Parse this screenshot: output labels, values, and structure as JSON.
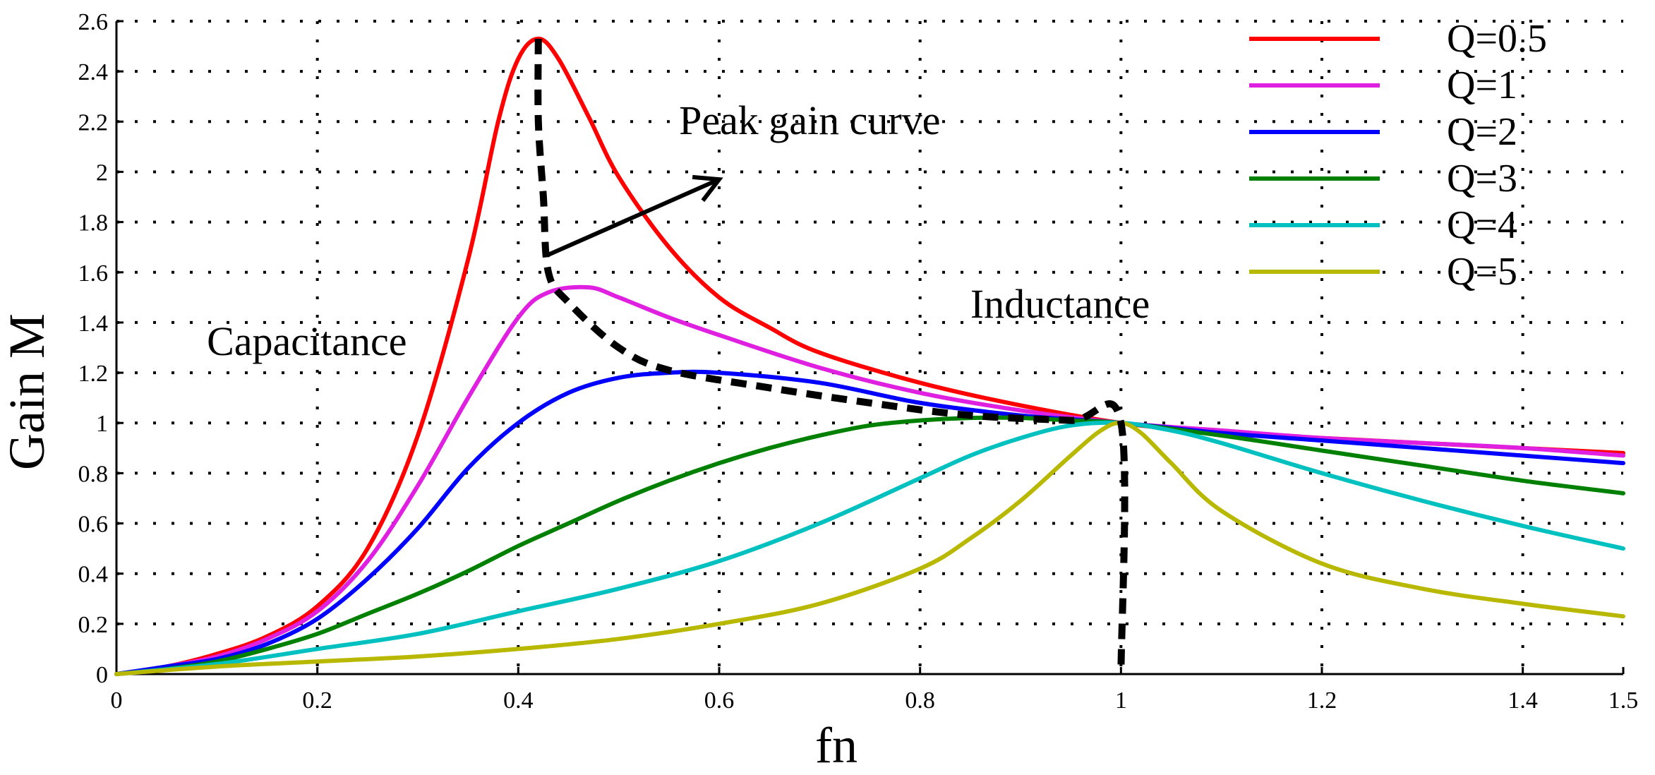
{
  "chart_data": {
    "type": "line",
    "title": "",
    "xlabel": "fn",
    "ylabel": "Gain M",
    "xlim": [
      0,
      1.5
    ],
    "ylim": [
      0,
      2.6
    ],
    "xticks": [
      0,
      0.2,
      0.4,
      0.6,
      0.8,
      1,
      1.2,
      1.4,
      1.5
    ],
    "xtick_labels": [
      "0",
      "0.2",
      "0.4",
      "0.6",
      "0.8",
      "1",
      "1.2",
      "1.4",
      "1.5"
    ],
    "yticks": [
      0,
      0.2,
      0.4,
      0.6,
      0.8,
      1,
      1.2,
      1.4,
      1.6,
      1.8,
      2,
      2.2,
      2.4,
      2.6
    ],
    "ytick_labels": [
      "0",
      "0.2",
      "0.4",
      "0.6",
      "0.8",
      "1",
      "1.2",
      "1.4",
      "1.6",
      "1.8",
      "2",
      "2.2",
      "2.4",
      "2.6"
    ],
    "grid": true,
    "legend_position": "top-right",
    "series": [
      {
        "name": "Q=0.5",
        "color": "#ff0000",
        "x": [
          0,
          0.05,
          0.1,
          0.15,
          0.2,
          0.25,
          0.3,
          0.35,
          0.38,
          0.4,
          0.42,
          0.44,
          0.47,
          0.5,
          0.55,
          0.6,
          0.65,
          0.7,
          0.8,
          0.9,
          1.0,
          1.1,
          1.2,
          1.3,
          1.4,
          1.5
        ],
        "values": [
          0,
          0.03,
          0.08,
          0.15,
          0.27,
          0.5,
          0.95,
          1.65,
          2.2,
          2.45,
          2.53,
          2.45,
          2.22,
          1.98,
          1.7,
          1.5,
          1.38,
          1.28,
          1.16,
          1.07,
          1.0,
          0.96,
          0.94,
          0.92,
          0.9,
          0.88
        ]
      },
      {
        "name": "Q=1",
        "color": "#e020e0",
        "x": [
          0,
          0.05,
          0.1,
          0.15,
          0.2,
          0.25,
          0.3,
          0.35,
          0.4,
          0.43,
          0.47,
          0.5,
          0.55,
          0.6,
          0.7,
          0.8,
          0.9,
          1.0,
          1.1,
          1.2,
          1.3,
          1.4,
          1.5
        ],
        "values": [
          0,
          0.03,
          0.07,
          0.14,
          0.25,
          0.45,
          0.75,
          1.1,
          1.42,
          1.52,
          1.54,
          1.5,
          1.42,
          1.35,
          1.22,
          1.12,
          1.05,
          1.0,
          0.97,
          0.94,
          0.92,
          0.9,
          0.87
        ]
      },
      {
        "name": "Q=2",
        "color": "#0000ff",
        "x": [
          0,
          0.05,
          0.1,
          0.15,
          0.2,
          0.25,
          0.3,
          0.35,
          0.4,
          0.45,
          0.5,
          0.55,
          0.6,
          0.7,
          0.8,
          0.9,
          1.0,
          1.1,
          1.2,
          1.3,
          1.4,
          1.5
        ],
        "values": [
          0,
          0.03,
          0.06,
          0.12,
          0.22,
          0.38,
          0.58,
          0.82,
          1.0,
          1.12,
          1.18,
          1.2,
          1.2,
          1.16,
          1.08,
          1.03,
          1.0,
          0.96,
          0.93,
          0.9,
          0.87,
          0.84
        ]
      },
      {
        "name": "Q=3",
        "color": "#008000",
        "x": [
          0,
          0.05,
          0.1,
          0.15,
          0.2,
          0.25,
          0.3,
          0.35,
          0.4,
          0.45,
          0.5,
          0.55,
          0.6,
          0.65,
          0.7,
          0.75,
          0.8,
          0.85,
          0.9,
          0.95,
          1.0,
          1.1,
          1.2,
          1.3,
          1.4,
          1.5
        ],
        "values": [
          0,
          0.02,
          0.05,
          0.1,
          0.16,
          0.24,
          0.32,
          0.41,
          0.51,
          0.6,
          0.69,
          0.77,
          0.84,
          0.9,
          0.95,
          0.99,
          1.01,
          1.02,
          1.02,
          1.01,
          1.0,
          0.95,
          0.89,
          0.83,
          0.77,
          0.72
        ]
      },
      {
        "name": "Q=4",
        "color": "#00c0c0",
        "x": [
          0,
          0.1,
          0.2,
          0.3,
          0.4,
          0.5,
          0.6,
          0.7,
          0.8,
          0.85,
          0.9,
          0.95,
          1.0,
          1.05,
          1.1,
          1.2,
          1.3,
          1.4,
          1.5
        ],
        "values": [
          0,
          0.04,
          0.1,
          0.16,
          0.25,
          0.34,
          0.45,
          0.6,
          0.78,
          0.87,
          0.94,
          0.99,
          1.0,
          0.97,
          0.92,
          0.8,
          0.69,
          0.59,
          0.5
        ]
      },
      {
        "name": "Q=5",
        "color": "#b8b800",
        "x": [
          0,
          0.1,
          0.2,
          0.3,
          0.4,
          0.5,
          0.6,
          0.7,
          0.8,
          0.85,
          0.9,
          0.95,
          0.98,
          1.0,
          1.02,
          1.05,
          1.1,
          1.2,
          1.3,
          1.4,
          1.5
        ],
        "values": [
          0,
          0.03,
          0.05,
          0.07,
          0.1,
          0.14,
          0.2,
          0.28,
          0.42,
          0.54,
          0.69,
          0.87,
          0.97,
          1.0,
          0.96,
          0.84,
          0.65,
          0.44,
          0.34,
          0.28,
          0.23
        ]
      }
    ],
    "peak_gain_curve": {
      "style": "dashed",
      "color": "#000000",
      "x": [
        0.42,
        0.42,
        0.425,
        0.43,
        0.45,
        0.5,
        0.55,
        0.65,
        0.75,
        0.85,
        0.95,
        1.0,
        1.0
      ],
      "values": [
        2.53,
        2.2,
        1.9,
        1.6,
        1.48,
        1.3,
        1.21,
        1.14,
        1.08,
        1.03,
        1.01,
        1.0,
        0.0
      ]
    },
    "arrow": {
      "from": [
        0.43,
        1.67
      ],
      "to": [
        0.6,
        1.97
      ],
      "color": "#000000"
    },
    "annotations": [
      {
        "text": "Peak gain curve",
        "x": 0.56,
        "y": 2.15
      },
      {
        "text": "Capacitance",
        "x": 0.09,
        "y": 1.27
      },
      {
        "text": "Inductance",
        "x": 0.85,
        "y": 1.42
      }
    ]
  }
}
